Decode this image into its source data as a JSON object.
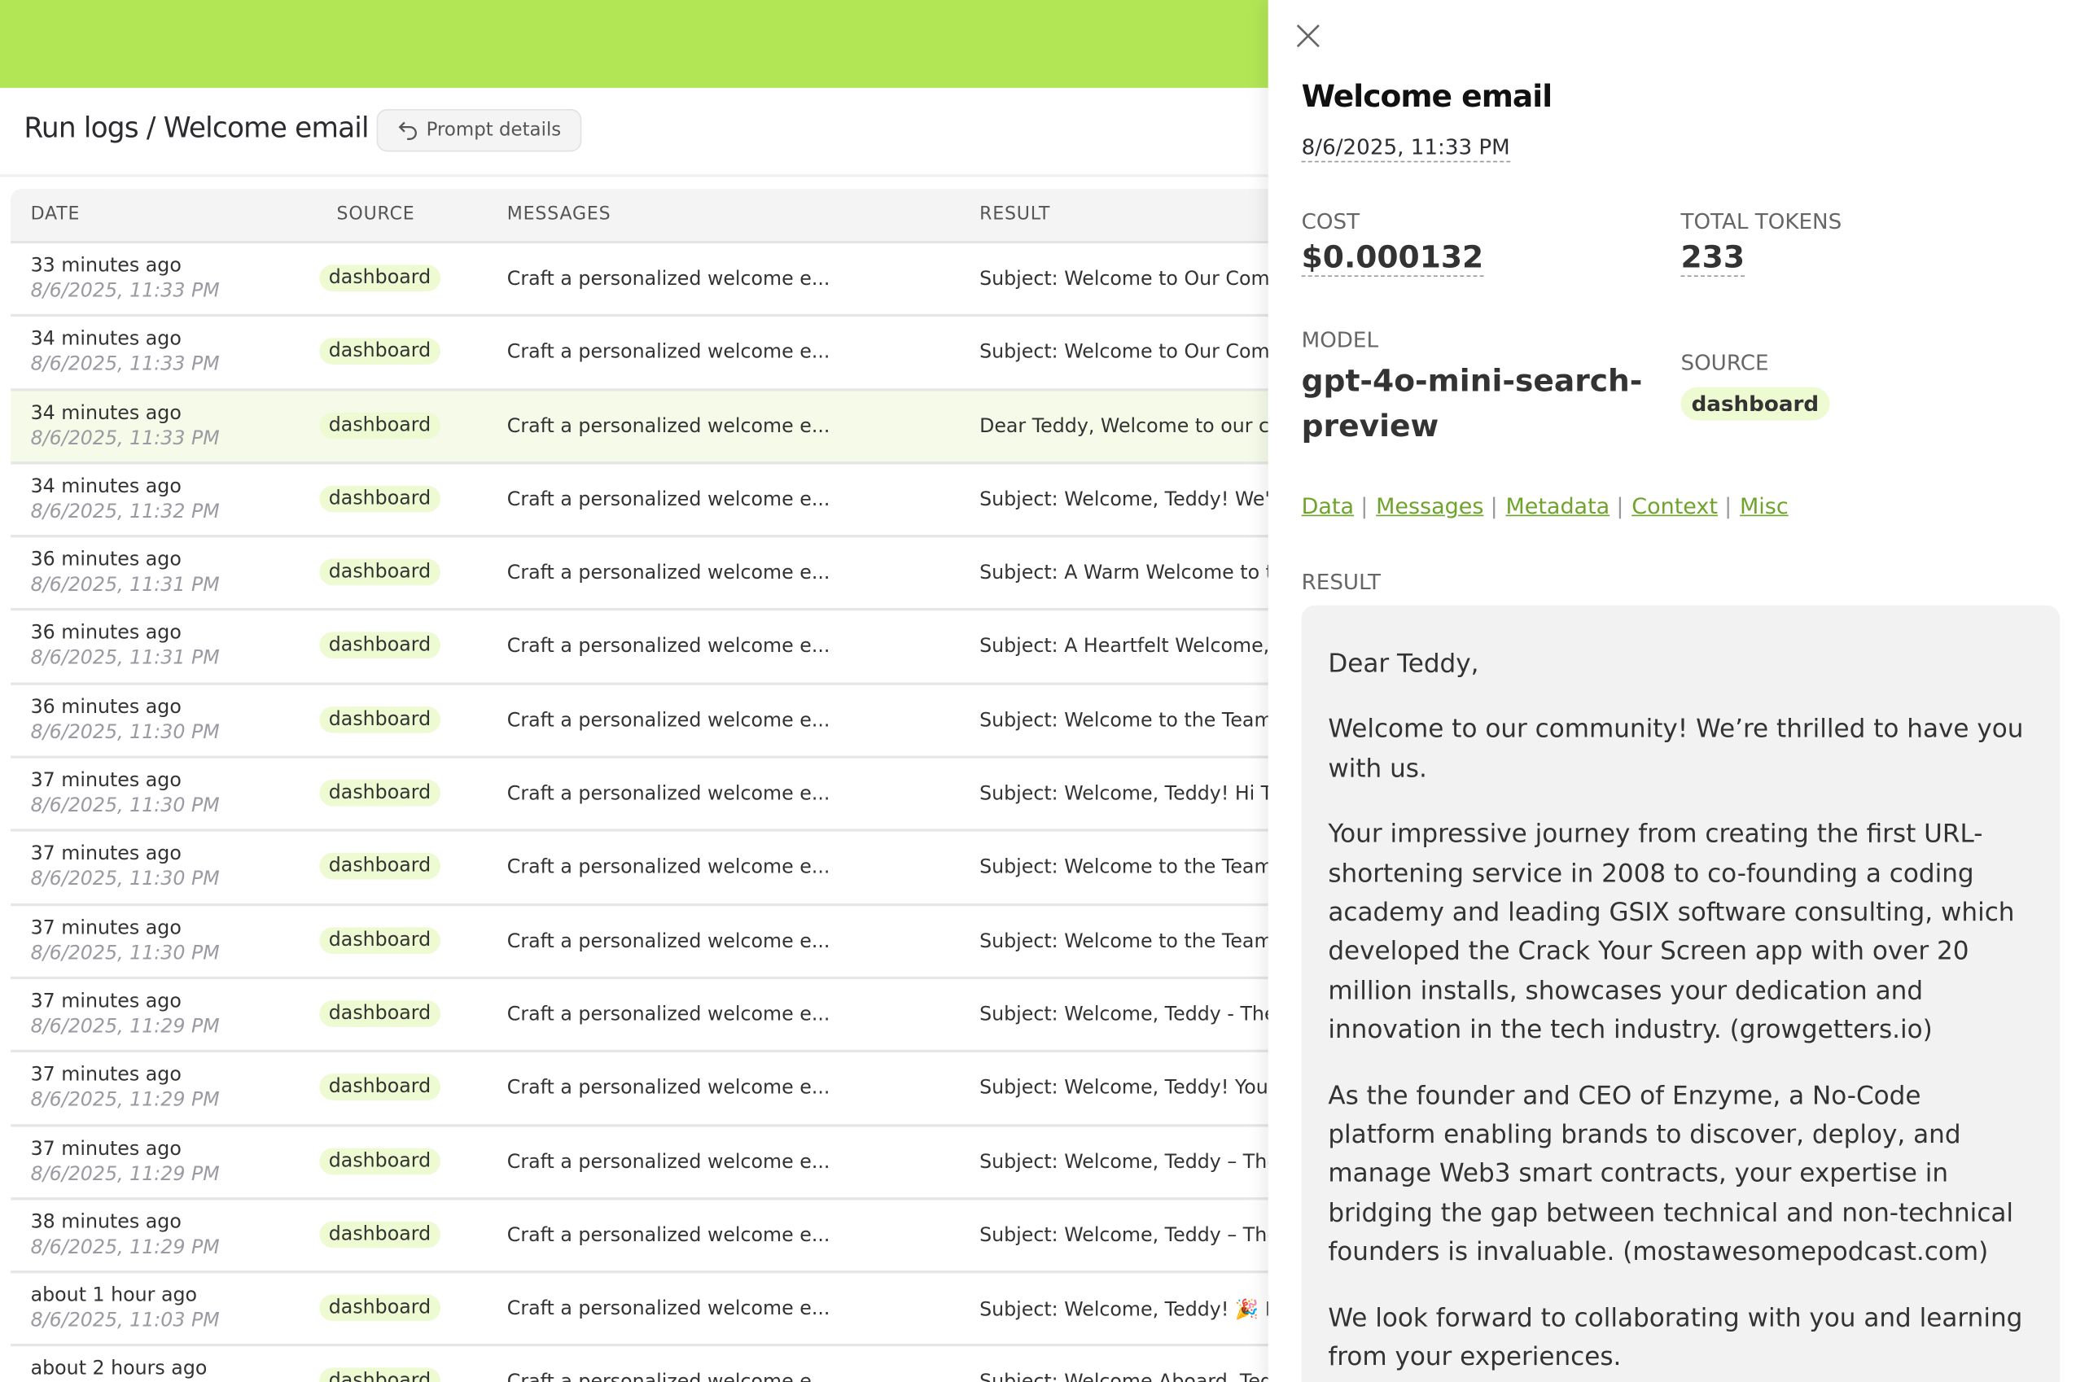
{
  "header": {
    "title": "Run logs / Welcome email",
    "prompt_details": "Prompt details"
  },
  "table": {
    "columns": [
      "DATE",
      "SOURCE",
      "MESSAGES",
      "RESULT"
    ],
    "rows": [
      {
        "rel": "33 minutes ago",
        "date": "8/6/2025, 11:33 PM",
        "source": "dashboard",
        "message": "Craft a personalized welcome e...",
        "result": "Subject: Welcome to Our Comm"
      },
      {
        "rel": "34 minutes ago",
        "date": "8/6/2025, 11:33 PM",
        "source": "dashboard",
        "message": "Craft a personalized welcome e...",
        "result": "Subject: Welcome to Our Comm"
      },
      {
        "rel": "34 minutes ago",
        "date": "8/6/2025, 11:33 PM",
        "source": "dashboard",
        "message": "Craft a personalized welcome e...",
        "result": "Dear Teddy, Welcome to our co..."
      },
      {
        "rel": "34 minutes ago",
        "date": "8/6/2025, 11:32 PM",
        "source": "dashboard",
        "message": "Craft a personalized welcome e...",
        "result": "Subject: Welcome, Teddy! We're..."
      },
      {
        "rel": "36 minutes ago",
        "date": "8/6/2025, 11:31 PM",
        "source": "dashboard",
        "message": "Craft a personalized welcome e...",
        "result": "Subject: A Warm Welcome to th"
      },
      {
        "rel": "36 minutes ago",
        "date": "8/6/2025, 11:31 PM",
        "source": "dashboard",
        "message": "Craft a personalized welcome e...",
        "result": "Subject: A Heartfelt Welcome, ..."
      },
      {
        "rel": "36 minutes ago",
        "date": "8/6/2025, 11:30 PM",
        "source": "dashboard",
        "message": "Craft a personalized welcome e...",
        "result": "Subject: Welcome to the Team, ..."
      },
      {
        "rel": "37 minutes ago",
        "date": "8/6/2025, 11:30 PM",
        "source": "dashboard",
        "message": "Craft a personalized welcome e...",
        "result": "Subject: Welcome, Teddy! Hi T..."
      },
      {
        "rel": "37 minutes ago",
        "date": "8/6/2025, 11:30 PM",
        "source": "dashboard",
        "message": "Craft a personalized welcome e...",
        "result": "Subject: Welcome to the Team, ..."
      },
      {
        "rel": "37 minutes ago",
        "date": "8/6/2025, 11:30 PM",
        "source": "dashboard",
        "message": "Craft a personalized welcome e...",
        "result": "Subject: Welcome to the Team, ..."
      },
      {
        "rel": "37 minutes ago",
        "date": "8/6/2025, 11:29 PM",
        "source": "dashboard",
        "message": "Craft a personalized welcome e...",
        "result": "Subject: Welcome, Teddy - The ..."
      },
      {
        "rel": "37 minutes ago",
        "date": "8/6/2025, 11:29 PM",
        "source": "dashboard",
        "message": "Craft a personalized welcome e...",
        "result": "Subject: Welcome, Teddy! You'r..."
      },
      {
        "rel": "37 minutes ago",
        "date": "8/6/2025, 11:29 PM",
        "source": "dashboard",
        "message": "Craft a personalized welcome e...",
        "result": "Subject: Welcome, Teddy – The ..."
      },
      {
        "rel": "38 minutes ago",
        "date": "8/6/2025, 11:29 PM",
        "source": "dashboard",
        "message": "Craft a personalized welcome e...",
        "result": "Subject: Welcome, Teddy – The ..."
      },
      {
        "rel": "about 1 hour ago",
        "date": "8/6/2025, 11:03 PM",
        "source": "dashboard",
        "message": "Craft a personalized welcome e...",
        "result": "Subject: Welcome, Teddy! 🎉 Hi..."
      },
      {
        "rel": "about 2 hours ago",
        "date": "",
        "source": "dashboard",
        "message": "Craft a personalized welcome e...",
        "result": "Subject: Welcome Aboard, Tedd"
      }
    ],
    "selected_index": 2
  },
  "panel": {
    "title": "Welcome email",
    "date": "8/6/2025, 11:33 PM",
    "cost_label": "COST",
    "cost": "$0.000132",
    "tokens_label": "TOTAL TOKENS",
    "tokens": "233",
    "model_label": "MODEL",
    "model": "gpt-4o-mini-search-preview",
    "source_label": "SOURCE",
    "source": "dashboard",
    "links": [
      "Data",
      "Messages",
      "Metadata",
      "Context",
      "Misc"
    ],
    "result_label": "RESULT",
    "result_paragraphs": [
      "Dear Teddy,",
      "Welcome to our community! We’re thrilled to have you with us.",
      "Your impressive journey from creating the first URL-shortening service in 2008 to co-founding a coding academy and leading GSIX software consulting, which developed the Crack Your Screen app with over 20 million installs, showcases your dedication and innovation in the tech industry. (growgetters.io)",
      "As the founder and CEO of Enzyme, a No-Code platform enabling brands to discover, deploy, and manage Web3 smart contracts, your expertise in bridging the gap between technical and non-technical founders is invaluable. (mostawesomepodcast.com)",
      "We look forward to collaborating with you and learning from your experiences."
    ]
  },
  "colors": {
    "accent": "#b3e655",
    "badge": "#eefad2",
    "link": "#6fa42c",
    "selected_row": "#f6fbe9"
  }
}
